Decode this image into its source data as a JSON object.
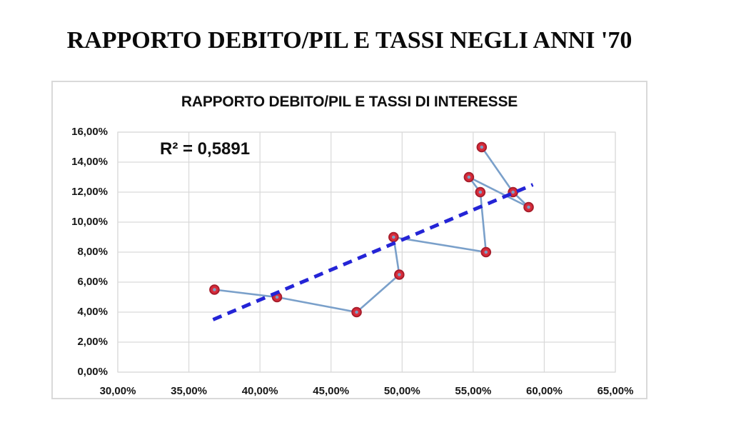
{
  "page": {
    "title": "RAPPORTO DEBITO/PIL E TASSI NEGLI ANNI '70"
  },
  "chart_data": {
    "type": "scatter",
    "title": "RAPPORTO DEBITO/PIL E TASSI DI INTERESSE",
    "annotation": "R² = 0,5891",
    "r_squared": 0.5891,
    "xlabel": "",
    "ylabel": "",
    "xlim": [
      30,
      65
    ],
    "ylim": [
      0,
      16
    ],
    "grid": true,
    "legend": false,
    "x_tick_values": [
      30,
      35,
      40,
      45,
      50,
      55,
      60,
      65
    ],
    "x_tick_labels": [
      "30,00%",
      "35,00%",
      "40,00%",
      "45,00%",
      "50,00%",
      "55,00%",
      "60,00%",
      "65,00%"
    ],
    "y_tick_values": [
      16,
      14,
      12,
      10,
      8,
      6,
      4,
      2,
      0
    ],
    "y_tick_labels": [
      "16,00%",
      "14,00%",
      "12,00%",
      "10,00%",
      "8,00%",
      "6,00%",
      "4,00%",
      "2,00%",
      "0,00%"
    ],
    "series": [
      {
        "name": "debito-pil-vs-tasso",
        "style": "line-with-markers",
        "points": [
          [
            36.8,
            5.5
          ],
          [
            41.2,
            5.0
          ],
          [
            46.8,
            4.0
          ],
          [
            49.8,
            6.5
          ],
          [
            49.4,
            9.0
          ],
          [
            55.9,
            8.0
          ],
          [
            55.5,
            12.0
          ],
          [
            54.7,
            13.0
          ],
          [
            58.9,
            11.0
          ],
          [
            57.8,
            12.0
          ],
          [
            55.6,
            15.0
          ]
        ]
      }
    ],
    "trendline": {
      "style": "dashed-linear",
      "from": [
        36.7,
        3.5
      ],
      "to": [
        59.2,
        12.5
      ]
    },
    "colors": {
      "series_line": "#7aa0ca",
      "marker_fill": "#d92b3a",
      "marker_stroke": "#a81e2c",
      "marker_center": "#7f9dc2",
      "trendline": "#2424d6",
      "gridline": "#d9d9d9",
      "text": "#161616"
    }
  }
}
